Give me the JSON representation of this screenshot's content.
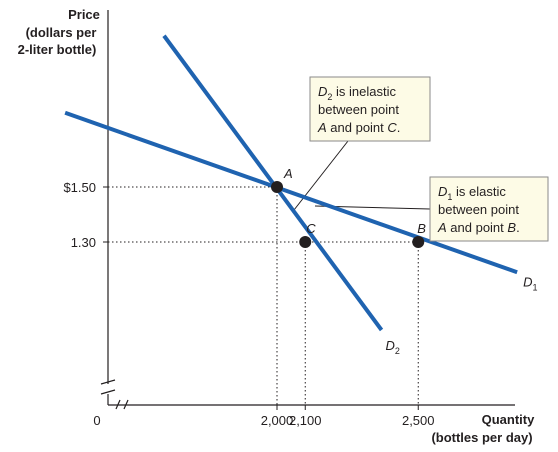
{
  "chart_data": {
    "type": "line",
    "ylabel": [
      "Price",
      "(dollars per",
      "2-liter bottle)"
    ],
    "xlabel": [
      "Quantity",
      "(bottles per day)"
    ],
    "origin_label": "0",
    "y_ticks": [
      {
        "value": 1.5,
        "label": "$1.50"
      },
      {
        "value": 1.3,
        "label": "1.30"
      }
    ],
    "x_ticks": [
      {
        "value": 2000,
        "label": "2,000"
      },
      {
        "value": 2100,
        "label": "2,100"
      },
      {
        "value": 2500,
        "label": "2,500"
      }
    ],
    "axis_break": true,
    "series": [
      {
        "name": "D",
        "subscript": "1",
        "color": "#1f63b0",
        "x": [
          1250,
          2850
        ],
        "y": [
          1.77,
          1.19
        ]
      },
      {
        "name": "D",
        "subscript": "2",
        "color": "#1f63b0",
        "x": [
          1600,
          2370
        ],
        "y": [
          2.05,
          0.98
        ]
      }
    ],
    "points": [
      {
        "label": "A",
        "x": 2000,
        "y": 1.5
      },
      {
        "label": "C",
        "x": 2100,
        "y": 1.3
      },
      {
        "label": "B",
        "x": 2500,
        "y": 1.3
      }
    ],
    "annotations": [
      {
        "target": "D2",
        "lines": [
          {
            "prefix": "D",
            "sub": "2",
            "text": " is inelastic"
          },
          {
            "text": "between point"
          },
          {
            "italic1": "A",
            "text": " and point ",
            "italic2": "C",
            "suffix": "."
          }
        ]
      },
      {
        "target": "D1",
        "lines": [
          {
            "prefix": "D",
            "sub": "1",
            "text": " is elastic"
          },
          {
            "text": "between point"
          },
          {
            "italic1": "A",
            "text": " and point ",
            "italic2": "B",
            "suffix": "."
          }
        ]
      }
    ],
    "colors": {
      "curve": "#1f63b0",
      "axis": "#231f20",
      "box_fill": "#fdfbe6",
      "box_border": "#8a8a8a"
    },
    "grid": false
  }
}
